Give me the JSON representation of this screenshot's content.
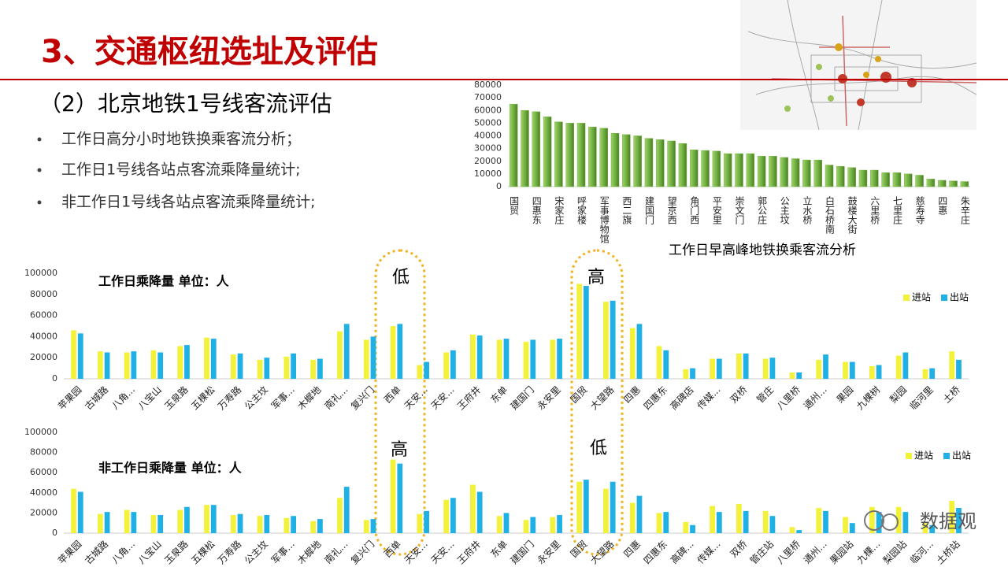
{
  "header": {
    "title": "3、交通枢纽选址及评估",
    "subtitle": "（2）北京地铁1号线客流评估",
    "bullets": [
      "工作日高分小时地铁换乘客流分析；",
      "工作日1号线各站点客流乘降量统计;",
      "非工作日1号线各站点客流乘降量统计;"
    ]
  },
  "watermark": "数据观",
  "chart_data": [
    {
      "type": "bar",
      "x_label": "工作日早高峰地铁换乘客流分析",
      "color": "#7ab648",
      "categories": [
        "国贸",
        null,
        "四惠东",
        null,
        "宋家庄",
        null,
        "呼家楼",
        null,
        "军事博物馆",
        null,
        "西二旗",
        null,
        "建国门",
        null,
        "望京西",
        null,
        "角门西",
        null,
        "平安里",
        null,
        "崇文门",
        null,
        "郭公庄",
        null,
        "公主坟",
        null,
        "立水桥",
        null,
        "白石桥南",
        null,
        "鼓楼大街",
        null,
        "六里桥",
        null,
        "七里庄",
        null,
        "慈寿寺",
        null,
        "四惠",
        null,
        "朱辛庄"
      ],
      "values": [
        65000,
        60000,
        59000,
        55000,
        51000,
        50000,
        50000,
        47000,
        46000,
        42000,
        41000,
        40000,
        38000,
        37000,
        36000,
        34000,
        29000,
        28500,
        28000,
        26000,
        26000,
        26000,
        24000,
        24000,
        23000,
        22000,
        21000,
        21000,
        17000,
        16000,
        15000,
        13000,
        13000,
        11000,
        11000,
        10000,
        9000,
        6000,
        5000,
        4500,
        4000
      ],
      "ylim": [
        0,
        80000
      ],
      "yticks": [
        0,
        10000,
        20000,
        30000,
        40000,
        50000,
        60000,
        70000,
        80000
      ]
    },
    {
      "type": "bar",
      "title": "工作日乘降量  单位：人",
      "annotations": [
        "低",
        "高"
      ],
      "legend": "top-right",
      "categories": [
        "苹果园",
        "古城路",
        "八角...",
        "八宝山",
        "玉泉路",
        "五棵松",
        "万寿路",
        "公主坟",
        "军事...",
        "木樨地",
        "南礼...",
        "复兴门",
        "西单",
        "天安...",
        "天安...",
        "王府井",
        "东单",
        "建国门",
        "永安里",
        "国贸",
        "大望路",
        "四惠",
        "四惠东",
        "高碑店",
        "传媒...",
        "双桥",
        "管庄",
        "八里桥",
        "通州...",
        "果园",
        "九棵树",
        "梨园",
        "临河里",
        "土桥"
      ],
      "series": [
        {
          "name": "进站",
          "color": "#f2f23a",
          "values": [
            46000,
            26000,
            25000,
            27000,
            31000,
            39000,
            23000,
            18000,
            21000,
            18000,
            45000,
            37000,
            50000,
            13000,
            25000,
            42000,
            37000,
            35000,
            37000,
            90000,
            73000,
            48000,
            31000,
            9000,
            19000,
            24000,
            19000,
            6000,
            18000,
            16000,
            12000,
            22000,
            9000,
            26000
          ]
        },
        {
          "name": "出站",
          "color": "#1fb0e6",
          "values": [
            43000,
            25000,
            26000,
            25000,
            32000,
            38000,
            24000,
            20000,
            24000,
            19000,
            52000,
            40000,
            52000,
            16000,
            27000,
            41000,
            38000,
            37000,
            38000,
            88000,
            74000,
            52000,
            27000,
            10000,
            19000,
            24000,
            20000,
            6000,
            23000,
            16000,
            13000,
            25000,
            10000,
            18000
          ]
        }
      ],
      "ylim": [
        0,
        100000
      ],
      "yticks": [
        0,
        20000,
        40000,
        60000,
        80000,
        100000
      ]
    },
    {
      "type": "bar",
      "title": "非工作日乘降量  单位：人",
      "annotations": [
        "高",
        "低"
      ],
      "legend": "top-right",
      "categories": [
        "苹果园",
        "古城路",
        "八角...",
        "八宝山",
        "玉泉路",
        "五棵松",
        "万寿路",
        "公主坟",
        "军事...",
        "木樨地",
        "南礼...",
        "复兴门",
        "西单",
        "天安...",
        "天安...",
        "王府井",
        "东单",
        "建国门",
        "永安里",
        "国贸",
        "大望路",
        "四惠",
        "四惠东",
        "高碑...",
        "传媒...",
        "双桥",
        "管庄站",
        "八里桥",
        "通州...",
        "果园站",
        "九棵...",
        "梨园站",
        "临河...",
        "土桥站"
      ],
      "series": [
        {
          "name": "进站",
          "color": "#f2f23a",
          "values": [
            44000,
            19000,
            23000,
            18000,
            23000,
            28000,
            18000,
            17000,
            15000,
            12000,
            35000,
            13000,
            73000,
            19000,
            33000,
            48000,
            17000,
            13000,
            16000,
            51000,
            44000,
            30000,
            20000,
            11000,
            27000,
            29000,
            22000,
            6000,
            25000,
            16000,
            26000,
            26000,
            10000,
            32000
          ]
        },
        {
          "name": "出站",
          "color": "#1fb0e6",
          "values": [
            41000,
            21000,
            21000,
            18000,
            26000,
            28000,
            19000,
            18000,
            17000,
            14000,
            46000,
            14000,
            69000,
            22000,
            35000,
            41000,
            20000,
            16000,
            18000,
            53000,
            51000,
            37000,
            21000,
            8000,
            21000,
            22000,
            17000,
            3000,
            22000,
            10000,
            21000,
            21000,
            8000,
            25000
          ]
        }
      ],
      "ylim": [
        0,
        100000
      ],
      "yticks": [
        0,
        20000,
        40000,
        60000,
        80000,
        100000
      ]
    }
  ]
}
